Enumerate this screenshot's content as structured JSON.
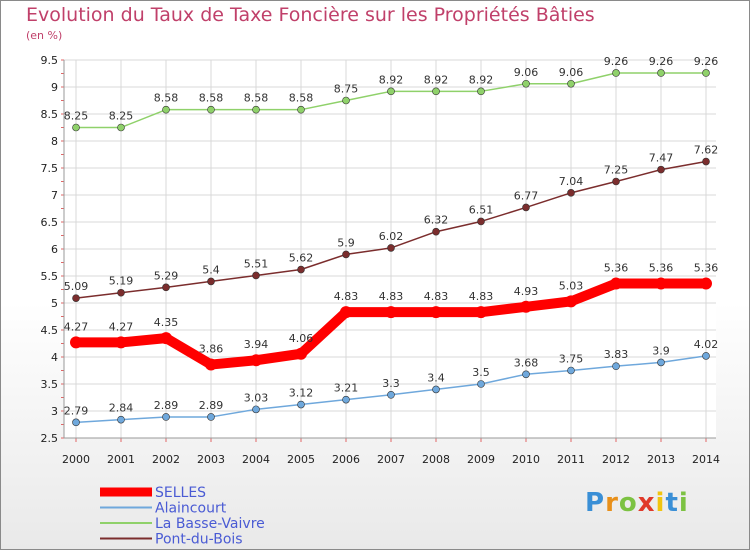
{
  "chart_data": {
    "type": "line",
    "title": "Evolution du Taux de Taxe Foncière sur les Propriétés Bâties",
    "subtitle": "(en %)",
    "categories": [
      "2000",
      "2001",
      "2002",
      "2003",
      "2004",
      "2005",
      "2006",
      "2007",
      "2008",
      "2009",
      "2010",
      "2011",
      "2012",
      "2013",
      "2014"
    ],
    "ylim": [
      2.5,
      9.5
    ],
    "yticks": [
      "2.5",
      "3",
      "3.5",
      "4",
      "4.5",
      "5",
      "5.5",
      "6",
      "6.5",
      "7",
      "7.5",
      "8",
      "8.5",
      "9",
      "9.5"
    ],
    "grid": true,
    "legend_position": "bottom-left",
    "series": [
      {
        "name": "SELLES",
        "color": "#ff0000",
        "values": [
          4.27,
          4.27,
          4.35,
          3.86,
          3.94,
          4.06,
          4.83,
          4.83,
          4.83,
          4.83,
          4.93,
          5.03,
          5.36,
          5.36,
          5.36
        ],
        "labels": [
          "4.27",
          "4.27",
          "4.35",
          "3.86",
          "3.94",
          "4.06",
          "4.83",
          "4.83",
          "4.83",
          "4.83",
          "4.93",
          "5.03",
          "5.36",
          "5.36",
          "5.36"
        ]
      },
      {
        "name": "Alaincourt",
        "color": "#6fa8dc",
        "values": [
          2.79,
          2.84,
          2.89,
          2.89,
          3.03,
          3.12,
          3.21,
          3.3,
          3.4,
          3.5,
          3.68,
          3.75,
          3.83,
          3.9,
          4.02
        ],
        "labels": [
          "2.79",
          "2.84",
          "2.89",
          "2.89",
          "3.03",
          "3.12",
          "3.21",
          "3.3",
          "3.4",
          "3.5",
          "3.68",
          "3.75",
          "3.83",
          "3.9",
          "4.02"
        ]
      },
      {
        "name": "La Basse-Vaivre",
        "color": "#8fd16a",
        "values": [
          8.25,
          8.25,
          8.58,
          8.58,
          8.58,
          8.58,
          8.75,
          8.92,
          8.92,
          8.92,
          9.06,
          9.06,
          9.26,
          9.26,
          9.26
        ],
        "labels": [
          "8.25",
          "8.25",
          "8.58",
          "8.58",
          "8.58",
          "8.58",
          "8.75",
          "8.92",
          "8.92",
          "8.92",
          "9.06",
          "9.06",
          "9.26",
          "9.26",
          "9.26"
        ]
      },
      {
        "name": "Pont-du-Bois",
        "color": "#7b2d2d",
        "values": [
          5.09,
          5.19,
          5.29,
          5.4,
          5.51,
          5.62,
          5.9,
          6.02,
          6.32,
          6.51,
          6.77,
          7.04,
          7.25,
          7.47,
          7.62
        ],
        "labels": [
          "5.09",
          "5.19",
          "5.29",
          "5.4",
          "5.51",
          "5.62",
          "5.9",
          "6.02",
          "6.32",
          "6.51",
          "6.77",
          "7.04",
          "7.25",
          "7.47",
          "7.62"
        ]
      }
    ]
  },
  "logo": {
    "letters": [
      "P",
      "r",
      "o",
      "x",
      "i",
      "t",
      "i"
    ],
    "colors": [
      "#3a8fd6",
      "#e8901a",
      "#7cc242",
      "#e03a2a",
      "#f1c40f",
      "#3a8fd6",
      "#7cc242"
    ]
  }
}
